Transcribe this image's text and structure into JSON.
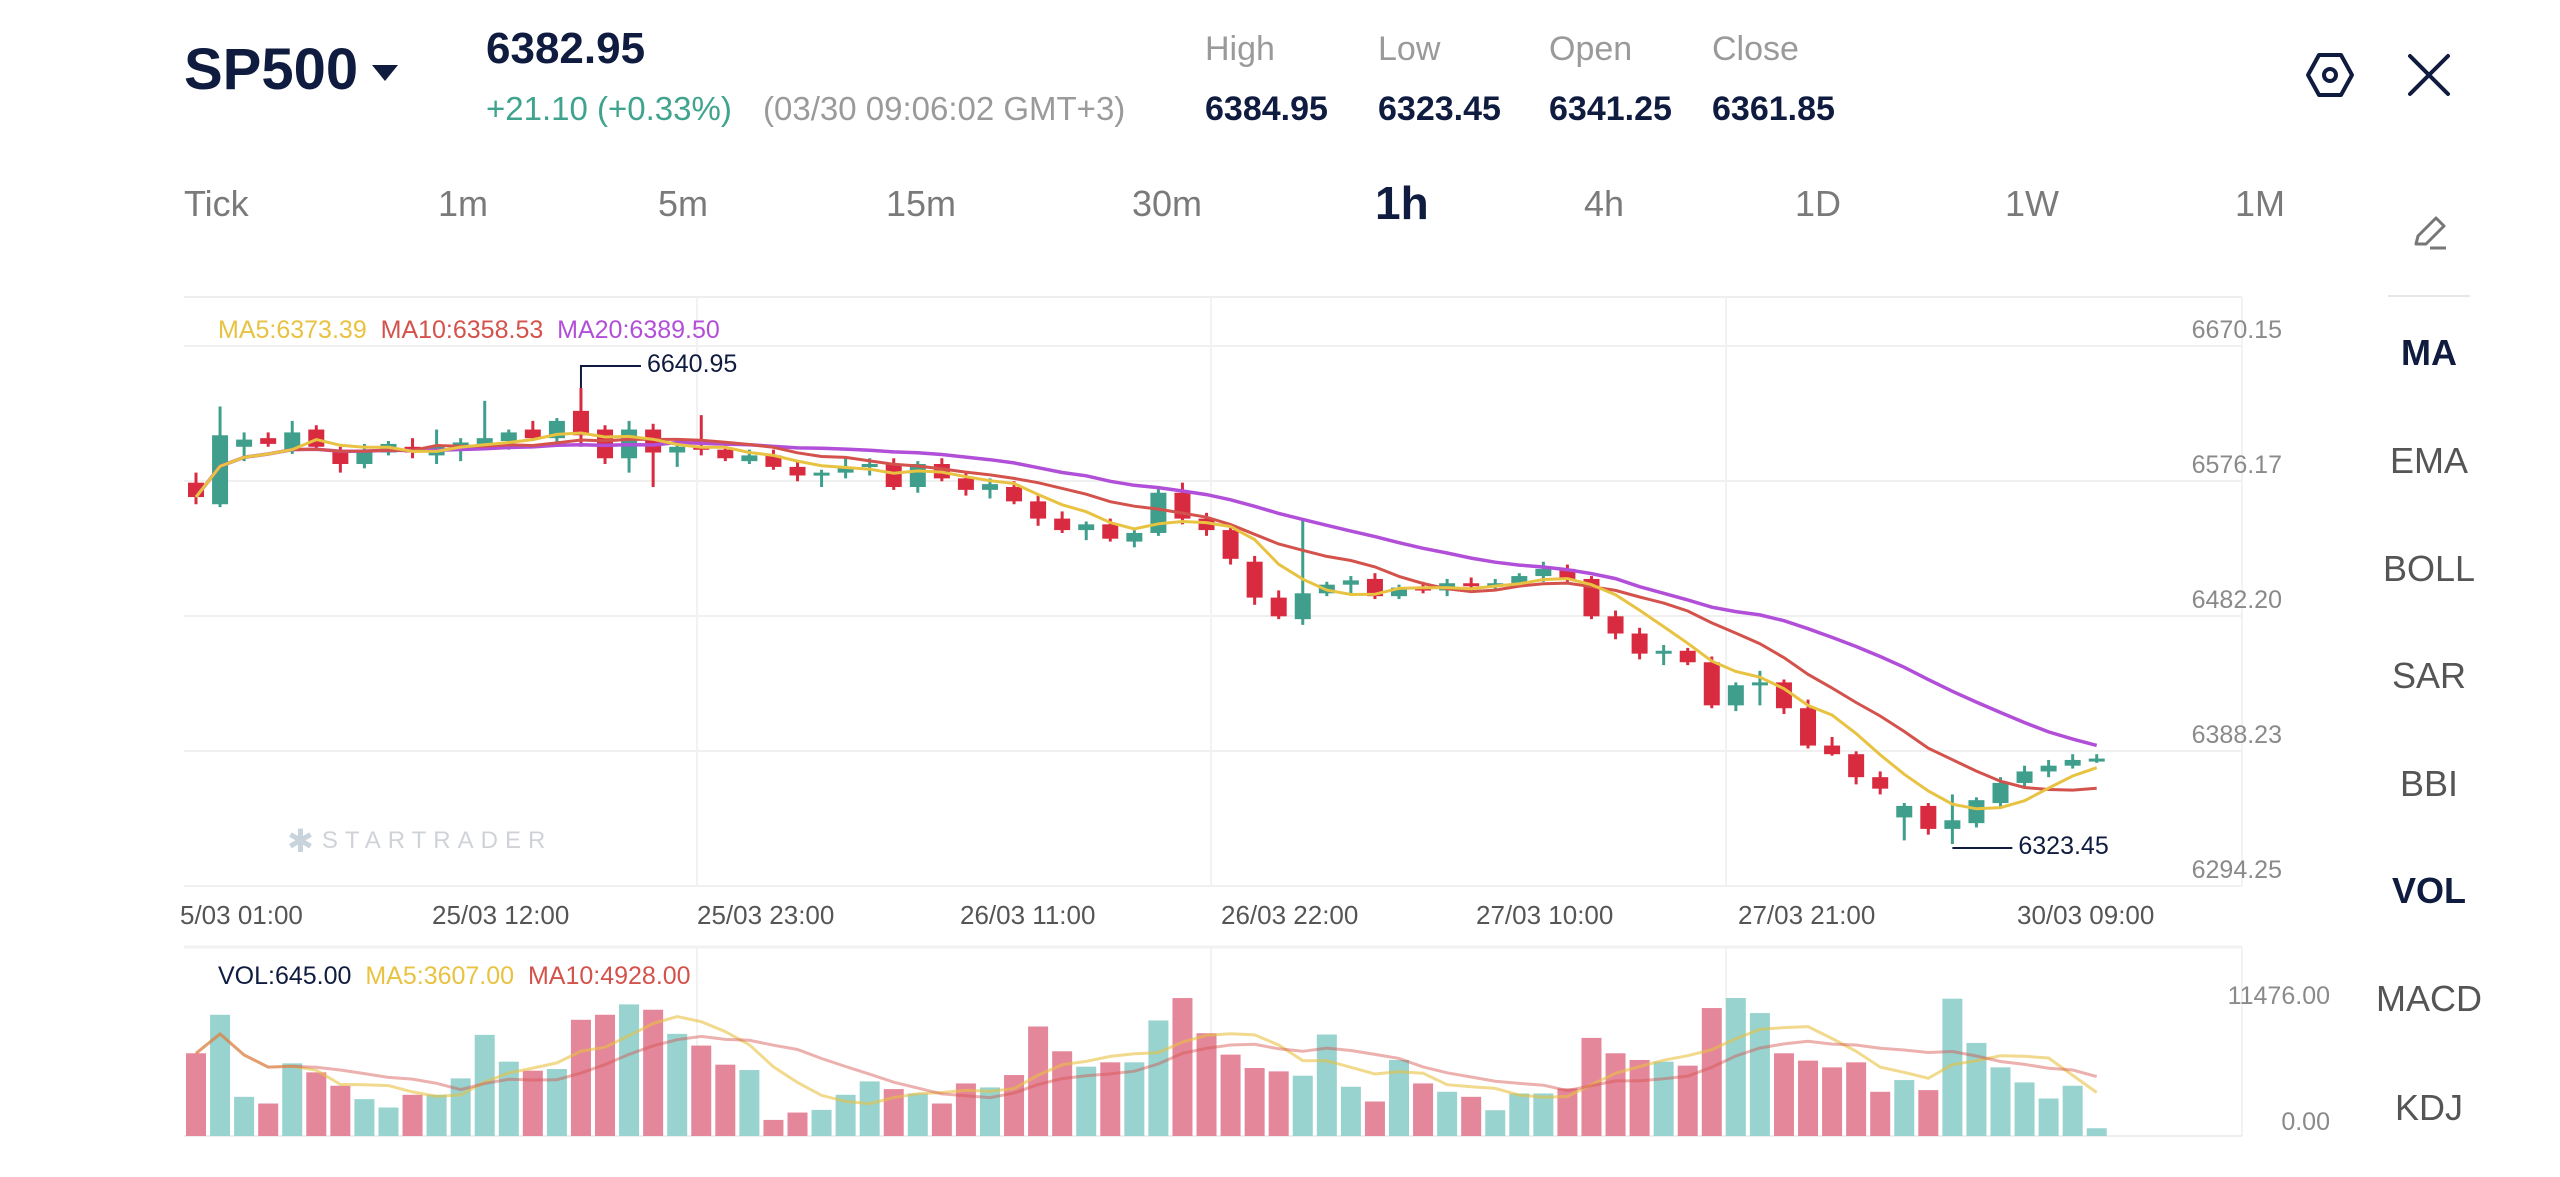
{
  "header": {
    "symbol": "SP500",
    "price": "6382.95",
    "change": "+21.10 (+0.33%)",
    "timestamp": "(03/30 09:06:02 GMT+3)",
    "stats": [
      {
        "label": "High",
        "value": "6384.95"
      },
      {
        "label": "Low",
        "value": "6323.45"
      },
      {
        "label": "Open",
        "value": "6341.25"
      },
      {
        "label": "Close",
        "value": "6361.85"
      }
    ],
    "icons": {
      "settings": "hexagon-settings-icon",
      "close": "close-icon"
    }
  },
  "timeframes": [
    "Tick",
    "1m",
    "5m",
    "15m",
    "30m",
    "1h",
    "4h",
    "1D",
    "1W",
    "1M"
  ],
  "active_timeframe": "1h",
  "sidebar": {
    "draw_icon": "pencil-icon",
    "items": [
      "MA",
      "EMA",
      "BOLL",
      "SAR",
      "BBI",
      "VOL",
      "MACD",
      "KDJ"
    ],
    "active": [
      "MA",
      "VOL"
    ]
  },
  "colors": {
    "up": "#3f9e8c",
    "down": "#d92b40",
    "ma5": "#e8c241",
    "ma10": "#d4524c",
    "ma20": "#b24fd8",
    "vol_up": "#98d3cf",
    "vol_down": "#e5879b"
  },
  "watermark": "STARTRADER",
  "chart_data": [
    {
      "type": "candlestick",
      "legend": {
        "ma5": "MA5:6373.39",
        "ma10": "MA10:6358.53",
        "ma20": "MA20:6389.50"
      },
      "y_ticks": [
        "6670.15",
        "6576.17",
        "6482.20",
        "6388.23",
        "6294.25"
      ],
      "ylim": [
        6294.25,
        6670.15
      ],
      "x_ticks": [
        "5/03 01:00",
        "25/03 12:00",
        "25/03 23:00",
        "26/03 11:00",
        "26/03 22:00",
        "27/03 10:00",
        "27/03 21:00",
        "30/03 09:00"
      ],
      "annotations": {
        "max": "6640.95",
        "min": "6323.45"
      },
      "grid": true,
      "ohlc": [
        [
          6575,
          6582,
          6560,
          6565
        ],
        [
          6560,
          6628,
          6558,
          6608
        ],
        [
          6600,
          6610,
          6590,
          6605
        ],
        [
          6606,
          6610,
          6600,
          6602
        ],
        [
          6598,
          6618,
          6595,
          6610
        ],
        [
          6612,
          6615,
          6598,
          6600
        ],
        [
          6598,
          6600,
          6582,
          6588
        ],
        [
          6588,
          6602,
          6585,
          6598
        ],
        [
          6596,
          6604,
          6594,
          6602
        ],
        [
          6600,
          6606,
          6592,
          6596
        ],
        [
          6594,
          6612,
          6588,
          6600
        ],
        [
          6598,
          6606,
          6590,
          6603
        ],
        [
          6602,
          6632,
          6598,
          6606
        ],
        [
          6604,
          6612,
          6598,
          6610
        ],
        [
          6612,
          6618,
          6604,
          6606
        ],
        [
          6606,
          6620,
          6602,
          6618
        ],
        [
          6625,
          6640.95,
          6600,
          6608
        ],
        [
          6612,
          6615,
          6588,
          6592
        ],
        [
          6592,
          6618,
          6582,
          6612
        ],
        [
          6612,
          6616,
          6572,
          6596
        ],
        [
          6596,
          6606,
          6586,
          6600
        ],
        [
          6600,
          6622,
          6594,
          6598
        ],
        [
          6598,
          6602,
          6590,
          6592
        ],
        [
          6590,
          6598,
          6588,
          6594
        ],
        [
          6594,
          6598,
          6584,
          6586
        ],
        [
          6586,
          6590,
          6576,
          6580
        ],
        [
          6580,
          6584,
          6572,
          6582
        ],
        [
          6582,
          6592,
          6578,
          6586
        ],
        [
          6586,
          6592,
          6580,
          6588
        ],
        [
          6588,
          6592,
          6570,
          6572
        ],
        [
          6572,
          6590,
          6568,
          6588
        ],
        [
          6588,
          6592,
          6576,
          6578
        ],
        [
          6578,
          6582,
          6566,
          6570
        ],
        [
          6570,
          6578,
          6564,
          6574
        ],
        [
          6572,
          6576,
          6560,
          6562
        ],
        [
          6562,
          6566,
          6545,
          6550
        ],
        [
          6550,
          6555,
          6540,
          6542
        ],
        [
          6542,
          6548,
          6535,
          6546
        ],
        [
          6546,
          6550,
          6534,
          6536
        ],
        [
          6534,
          6542,
          6530,
          6540
        ],
        [
          6540,
          6572,
          6538,
          6568
        ],
        [
          6568,
          6575,
          6546,
          6550
        ],
        [
          6550,
          6554,
          6538,
          6542
        ],
        [
          6542,
          6546,
          6518,
          6522
        ],
        [
          6520,
          6524,
          6490,
          6495
        ],
        [
          6495,
          6500,
          6480,
          6482
        ],
        [
          6480,
          6550,
          6476,
          6498
        ],
        [
          6498,
          6506,
          6496,
          6504
        ],
        [
          6504,
          6510,
          6498,
          6507
        ],
        [
          6508,
          6512,
          6494,
          6496
        ],
        [
          6496,
          6504,
          6494,
          6502
        ],
        [
          6502,
          6506,
          6498,
          6500
        ],
        [
          6500,
          6508,
          6496,
          6505
        ],
        [
          6505,
          6509,
          6501,
          6503
        ],
        [
          6503,
          6508,
          6500,
          6505
        ],
        [
          6505,
          6512,
          6503,
          6510
        ],
        [
          6510,
          6520,
          6506,
          6515
        ],
        [
          6515,
          6518,
          6506,
          6508
        ],
        [
          6508,
          6510,
          6480,
          6482
        ],
        [
          6482,
          6486,
          6466,
          6470
        ],
        [
          6470,
          6474,
          6452,
          6456
        ],
        [
          6456,
          6462,
          6448,
          6458
        ],
        [
          6458,
          6460,
          6448,
          6450
        ],
        [
          6450,
          6454,
          6418,
          6420
        ],
        [
          6420,
          6436,
          6416,
          6434
        ],
        [
          6434,
          6444,
          6420,
          6436
        ],
        [
          6436,
          6438,
          6414,
          6418
        ],
        [
          6418,
          6424,
          6390,
          6392
        ],
        [
          6392,
          6398,
          6385,
          6386
        ],
        [
          6386,
          6388,
          6365,
          6370
        ],
        [
          6370,
          6374,
          6358,
          6362
        ],
        [
          6342,
          6352,
          6326,
          6350
        ],
        [
          6350,
          6352,
          6330,
          6334
        ],
        [
          6334,
          6358,
          6323.45,
          6340
        ],
        [
          6338,
          6356,
          6335,
          6354
        ],
        [
          6352,
          6370,
          6348,
          6366
        ],
        [
          6366,
          6378,
          6362,
          6374
        ],
        [
          6374,
          6382,
          6370,
          6378
        ],
        [
          6378,
          6386,
          6376,
          6382
        ],
        [
          6382,
          6386,
          6380,
          6382.95
        ]
      ]
    },
    {
      "type": "bar",
      "legend": {
        "vol": "VOL:645.00",
        "ma5": "MA5:3607.00",
        "ma10": "MA10:4928.00"
      },
      "y_ticks": [
        "11476.00",
        "0.00"
      ],
      "ylim": [
        0,
        11476
      ],
      "values": [
        6879,
        10082,
        3258,
        2701,
        6043,
        5292,
        4178,
        3064,
        2367,
        3426,
        3426,
        4790,
        8411,
        6183,
        5431,
        5570,
        9664,
        10082,
        10945,
        10499,
        8494,
        7520,
        5932,
        5486,
        1337,
        1950,
        2172,
        3426,
        4540,
        3899,
        3537,
        2701,
        4372,
        4038,
        5069,
        9107,
        7046,
        5765,
        6127,
        6127,
        9608,
        11474,
        8550,
        6768,
        5654,
        5375,
        5013,
        8439,
        4094,
        2869,
        6322,
        4372,
        3676,
        3258,
        2144,
        3537,
        3537,
        3955,
        8160,
        6879,
        6322,
        6183,
        5849,
        10639,
        11474,
        10221,
        6879,
        6266,
        5709,
        6127,
        3676,
        4651,
        3815,
        11418,
        7742,
        5709,
        4456,
        3119,
        4178,
        645
      ]
    }
  ]
}
